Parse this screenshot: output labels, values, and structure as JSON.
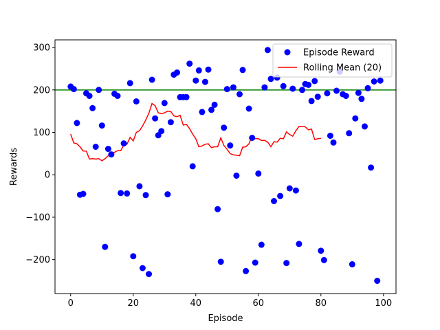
{
  "chart_data": {
    "type": "scatter",
    "xlabel": "Episode",
    "ylabel": "Rewards",
    "xlim": [
      -5,
      104
    ],
    "ylim": [
      -280,
      318
    ],
    "x_ticks": [
      0,
      20,
      40,
      60,
      80,
      100
    ],
    "y_ticks": [
      -200,
      -100,
      0,
      100,
      200,
      300
    ],
    "grid": false,
    "legend_position": "top-right",
    "reference_line": {
      "y": 200,
      "color": "#008000"
    },
    "series": [
      {
        "name": "Episode Reward",
        "kind": "scatter",
        "color": "#0000ff",
        "x": [
          0,
          1,
          2,
          3,
          4,
          5,
          6,
          7,
          8,
          9,
          10,
          11,
          12,
          13,
          14,
          15,
          16,
          17,
          18,
          19,
          20,
          21,
          22,
          23,
          24,
          25,
          26,
          27,
          28,
          29,
          30,
          31,
          32,
          33,
          34,
          35,
          36,
          37,
          38,
          39,
          40,
          41,
          42,
          43,
          44,
          45,
          46,
          47,
          48,
          49,
          50,
          51,
          52,
          53,
          54,
          55,
          56,
          57,
          58,
          59,
          60,
          61,
          62,
          63,
          64,
          65,
          66,
          67,
          68,
          69,
          70,
          71,
          72,
          73,
          74,
          75,
          76,
          77,
          78,
          79,
          80,
          81,
          82,
          83,
          84,
          85,
          86,
          87,
          88,
          89,
          90,
          91,
          92,
          93,
          94,
          95,
          96,
          97,
          98,
          99
        ],
        "y": [
          208,
          202,
          122,
          -47,
          -45,
          192,
          186,
          157,
          66,
          200,
          116,
          -170,
          61,
          48,
          191,
          186,
          -43,
          74,
          -44,
          216,
          -192,
          173,
          -27,
          -220,
          -48,
          -234,
          224,
          133,
          93,
          103,
          169,
          -46,
          124,
          236,
          241,
          183,
          183,
          183,
          262,
          20,
          222,
          246,
          148,
          219,
          248,
          153,
          165,
          -81,
          -205,
          111,
          202,
          69,
          206,
          -2,
          190,
          247,
          -227,
          156,
          87,
          -207,
          3,
          -165,
          206,
          294,
          226,
          -62,
          229,
          -50,
          209,
          -208,
          -32,
          203,
          -37,
          -163,
          200,
          214,
          212,
          174,
          221,
          184,
          -179,
          -201,
          192,
          92,
          76,
          198,
          243,
          190,
          186,
          98,
          -211,
          133,
          193,
          179,
          114,
          204,
          17,
          220,
          -250,
          222
        ]
      },
      {
        "name": "Rolling Mean (20)",
        "kind": "line",
        "color": "#ff0000",
        "x": [
          0,
          1,
          2,
          3,
          4,
          5,
          6,
          7,
          8,
          9,
          10,
          11,
          12,
          13,
          14,
          15,
          16,
          17,
          18,
          19,
          20,
          21,
          22,
          23,
          24,
          25,
          26,
          27,
          28,
          29,
          30,
          31,
          32,
          33,
          34,
          35,
          36,
          37,
          38,
          39,
          40,
          41,
          42,
          43,
          44,
          45,
          46,
          47,
          48,
          49,
          50,
          51,
          52,
          53,
          54,
          55,
          56,
          57,
          58,
          59,
          60,
          61,
          62,
          63,
          64,
          65,
          66,
          67,
          68,
          69,
          70,
          71,
          72,
          73,
          74,
          75,
          76,
          77,
          78,
          79,
          80
        ],
        "y": [
          96,
          75,
          73,
          66,
          56,
          56,
          37,
          38,
          37,
          38,
          33,
          38,
          45,
          52,
          53,
          57,
          57,
          70,
          72,
          88,
          80,
          100,
          104,
          115,
          129,
          145,
          168,
          163,
          146,
          144,
          146,
          150,
          149,
          139,
          137,
          140,
          117,
          119,
          109,
          96,
          85,
          66,
          68,
          72,
          73,
          64,
          66,
          66,
          87,
          69,
          60,
          50,
          47,
          46,
          45,
          65,
          66,
          73,
          92,
          85,
          85,
          81,
          81,
          77,
          66,
          78,
          77,
          86,
          85,
          101,
          95,
          91,
          104,
          114,
          114,
          113,
          106,
          108,
          83,
          85,
          86
        ]
      }
    ]
  }
}
